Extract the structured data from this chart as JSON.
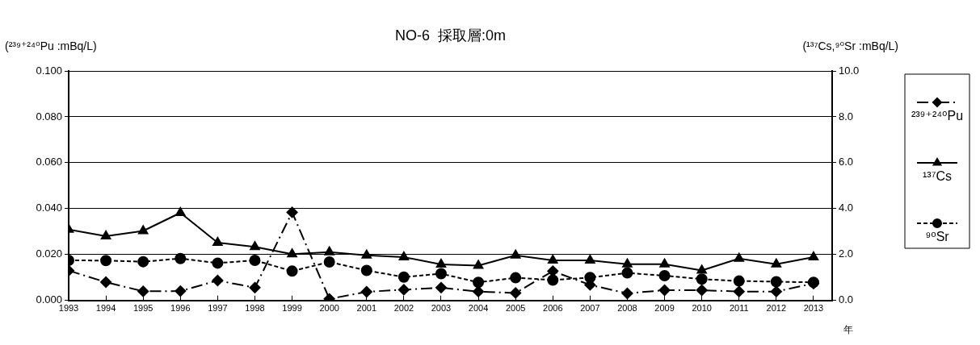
{
  "chart_data": {
    "type": "line",
    "title": "NO-6  採取層:0m",
    "ylabel": "(²³⁹⁺²⁴⁰Pu :mBq/L)",
    "y2label": "(¹³⁷Cs,⁹⁰Sr :mBq/L)",
    "xlabel": "年",
    "x": [
      1993,
      1994,
      1995,
      1996,
      1997,
      1998,
      1999,
      2000,
      2001,
      2002,
      2003,
      2004,
      2005,
      2006,
      2007,
      2008,
      2009,
      2010,
      2011,
      2012,
      2013
    ],
    "xlim": [
      1993,
      2013.5
    ],
    "xticks": [
      1993,
      1994,
      1995,
      1996,
      1997,
      1998,
      1999,
      2000,
      2001,
      2002,
      2003,
      2004,
      2005,
      2006,
      2007,
      2008,
      2009,
      2010,
      2011,
      2012,
      2013
    ],
    "ylim": [
      0,
      0.1
    ],
    "yticks": [
      {
        "value": 0,
        "label": "0.000"
      },
      {
        "value": 0.02,
        "label": "0.020"
      },
      {
        "value": 0.04,
        "label": "0.040"
      },
      {
        "value": 0.06,
        "label": "0.060"
      },
      {
        "value": 0.08,
        "label": "0.080"
      },
      {
        "value": 0.1,
        "label": "0.100"
      }
    ],
    "y2lim": [
      0,
      10
    ],
    "y2ticks": [
      {
        "value": 0,
        "label": "0.0"
      },
      {
        "value": 2,
        "label": "2.0"
      },
      {
        "value": 4,
        "label": "4.0"
      },
      {
        "value": 6,
        "label": "6.0"
      },
      {
        "value": 8,
        "label": "8.0"
      },
      {
        "value": 10,
        "label": "10.0"
      }
    ],
    "grid": "y",
    "legend": "right",
    "series": [
      {
        "name": "²³⁹⁺²⁴⁰Pu",
        "color": "#000000",
        "marker": "diamond",
        "line_style": "dashdot",
        "values": [
          0.013,
          0.008,
          0.004,
          0.0041,
          0.0087,
          0.0056,
          0.0384,
          0.0007,
          0.0038,
          0.0047,
          0.0056,
          0.0039,
          0.0033,
          0.0128,
          0.0068,
          0.0031,
          0.0045,
          0.0045,
          0.0039,
          0.0039,
          0.0074
        ]
      },
      {
        "name": "¹³⁷Cs",
        "color": "#000000",
        "marker": "triangle",
        "line_style": "solid",
        "axis": "y2",
        "values": [
          3.09,
          2.8,
          3.03,
          3.82,
          2.52,
          2.34,
          2.02,
          2.11,
          1.97,
          1.89,
          1.57,
          1.52,
          1.97,
          1.75,
          1.75,
          1.58,
          1.58,
          1.31,
          1.83,
          1.58,
          1.89
        ]
      },
      {
        "name": "⁹⁰Sr",
        "color": "#000000",
        "marker": "circle",
        "line_style": "dashed",
        "axis": "y2",
        "values": [
          1.75,
          1.74,
          1.69,
          1.83,
          1.63,
          1.75,
          1.28,
          1.68,
          1.31,
          1.02,
          1.17,
          0.79,
          0.99,
          0.89,
          1.0,
          1.2,
          1.08,
          0.93,
          0.85,
          0.82,
          0.79
        ]
      }
    ]
  }
}
